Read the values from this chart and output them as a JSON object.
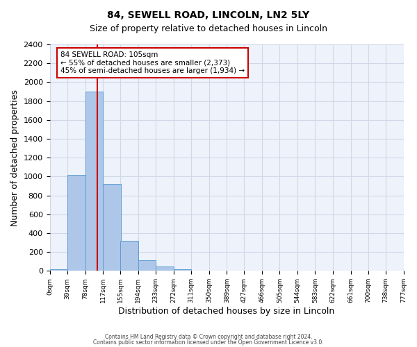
{
  "title": "84, SEWELL ROAD, LINCOLN, LN2 5LY",
  "subtitle": "Size of property relative to detached houses in Lincoln",
  "xlabel": "Distribution of detached houses by size in Lincoln",
  "ylabel": "Number of detached properties",
  "bar_color": "#aec6e8",
  "bar_edge_color": "#5a9fd4",
  "grid_color": "#d0d8e8",
  "background_color": "#eef2fa",
  "bin_edges": [
    0,
    39,
    78,
    117,
    155,
    194,
    233,
    272,
    311,
    350,
    389,
    427,
    466,
    505,
    544,
    583,
    622,
    661,
    700,
    738,
    777
  ],
  "bin_labels": [
    "0sqm",
    "39sqm",
    "78sqm",
    "117sqm",
    "155sqm",
    "194sqm",
    "233sqm",
    "272sqm",
    "311sqm",
    "350sqm",
    "389sqm",
    "427sqm",
    "466sqm",
    "505sqm",
    "544sqm",
    "583sqm",
    "622sqm",
    "661sqm",
    "700sqm",
    "738sqm",
    "777sqm"
  ],
  "bar_heights": [
    20,
    1020,
    1900,
    920,
    320,
    110,
    45,
    15,
    5,
    2,
    1,
    0,
    0,
    0,
    0,
    0,
    0,
    0,
    0,
    0
  ],
  "red_line_x": 105,
  "ylim": [
    0,
    2400
  ],
  "yticks": [
    0,
    200,
    400,
    600,
    800,
    1000,
    1200,
    1400,
    1600,
    1800,
    2000,
    2200,
    2400
  ],
  "annotation_title": "84 SEWELL ROAD: 105sqm",
  "annotation_line1": "← 55% of detached houses are smaller (2,373)",
  "annotation_line2": "45% of semi-detached houses are larger (1,934) →",
  "annotation_box_color": "#ffffff",
  "annotation_box_edge": "#cc0000",
  "red_line_color": "#cc0000",
  "footer1": "Contains HM Land Registry data © Crown copyright and database right 2024.",
  "footer2": "Contains public sector information licensed under the Open Government Licence v3.0."
}
